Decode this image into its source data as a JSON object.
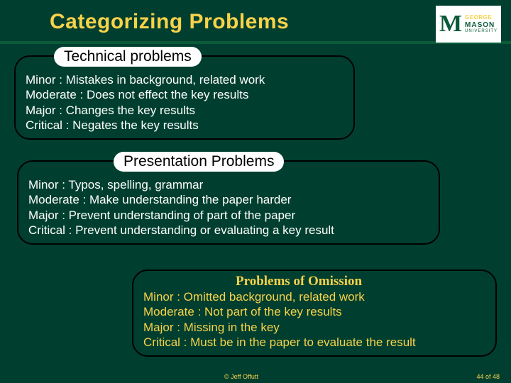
{
  "colors": {
    "background": "#003f2f",
    "title": "#f7d24a",
    "underline": "#0b5a3a",
    "box_border": "#000000",
    "box_header_bg": "#ffffff",
    "box_header_text": "#000000",
    "body_text_white": "#ffffff",
    "body_text_gold": "#f7d24a"
  },
  "title": "Categorizing Problems",
  "logo": {
    "t1": "GEORGE",
    "t2": "MASON",
    "t3": "UNIVERSITY"
  },
  "boxes": [
    {
      "header": "Technical problems",
      "items": [
        "Minor : Mistakes in background, related work",
        "Moderate : Does not effect the key results",
        "Major : Changes the key results",
        "Critical : Negates the key results"
      ]
    },
    {
      "header": "Presentation Problems",
      "items": [
        "Minor : Typos, spelling, grammar",
        "Moderate : Make understanding the paper harder",
        "Major : Prevent understanding of part of the paper",
        "Critical : Prevent understanding or evaluating a key result"
      ]
    },
    {
      "header": "Problems of Omission",
      "items": [
        "Minor : Omitted background, related work",
        "Moderate : Not part of the key results",
        "Major : Missing in the key",
        "Critical : Must be in the paper to evaluate the result"
      ]
    }
  ],
  "footer": {
    "copyright": "© Jeff Offutt",
    "page": "44 of 48"
  }
}
